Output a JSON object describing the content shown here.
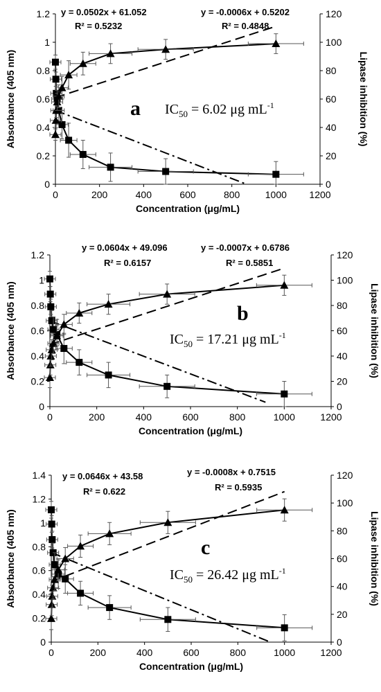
{
  "chart_data": [
    {
      "type": "scatter",
      "panel_letter": "a",
      "ic50_text": "6.02 μg mL",
      "xlabel": "Concentration (μg/mL)",
      "ylabel_left": "Absorbance (405 nm)",
      "ylabel_right": "Lipase inhibition (%)",
      "xlim": [
        0,
        1200
      ],
      "xticks": [
        0,
        200,
        400,
        600,
        800,
        1000,
        1200
      ],
      "ylim_left": [
        0,
        1.2
      ],
      "yticks_left": [
        0,
        0.2,
        0.4,
        0.6,
        0.8,
        1,
        1.2
      ],
      "ylim_right": [
        0,
        120
      ],
      "yticks_right": [
        0,
        20,
        40,
        60,
        80,
        100,
        120
      ],
      "equations": [
        {
          "text": "y = 0.0502x + 61.052",
          "r2": "R² = 0.5232"
        },
        {
          "text": "y = -0.0006x + 0.5202",
          "r2": "R² = 0.4848"
        }
      ],
      "series": [
        {
          "marker": "square",
          "axis": "left",
          "x": [
            0,
            2,
            4,
            8,
            15,
            30,
            60,
            125,
            250,
            500,
            1000
          ],
          "y": [
            0.86,
            0.74,
            0.64,
            0.6,
            0.52,
            0.42,
            0.31,
            0.21,
            0.12,
            0.09,
            0.07
          ],
          "err_y": [
            0.05,
            0.05,
            0.05,
            0.06,
            0.08,
            0.1,
            0.12,
            0.1,
            0.1,
            0.09,
            0.09
          ]
        },
        {
          "marker": "triangle",
          "axis": "right",
          "x": [
            0,
            2,
            4,
            8,
            15,
            30,
            60,
            125,
            250,
            500,
            1000
          ],
          "y": [
            35,
            45,
            52,
            58,
            62,
            68,
            77,
            85,
            92,
            95,
            99
          ],
          "err_y": [
            4,
            5,
            5,
            6,
            8,
            8,
            10,
            8,
            7,
            7,
            7
          ]
        }
      ],
      "trendlines": [
        {
          "axis": "right",
          "style": "dashed",
          "slope": 0.0502,
          "intercept": 61.052,
          "x_end": 1000
        },
        {
          "axis": "left",
          "style": "dashdot",
          "slope": -0.0006,
          "intercept": 0.5202,
          "x_end": 870
        }
      ]
    },
    {
      "type": "scatter",
      "panel_letter": "b",
      "ic50_text": "17.21 μg mL",
      "xlabel": "Concentration (μg/mL)",
      "ylabel_left": "Absorbance (405 nm)",
      "ylabel_right": "Lipase inhibition (%)",
      "xlim": [
        0,
        1200
      ],
      "xticks": [
        0,
        200,
        400,
        600,
        800,
        1000,
        1200
      ],
      "ylim_left": [
        0,
        1.2
      ],
      "yticks_left": [
        0,
        0.2,
        0.4,
        0.6,
        0.8,
        1,
        1.2
      ],
      "ylim_right": [
        0,
        120
      ],
      "yticks_right": [
        0,
        20,
        40,
        60,
        80,
        100,
        120
      ],
      "equations": [
        {
          "text": "y = 0.0604x + 49.096",
          "r2": "R² = 0.6157"
        },
        {
          "text": "y = -0.0007x + 0.6786",
          "r2": "R² = 0.5851"
        }
      ],
      "series": [
        {
          "marker": "square",
          "axis": "left",
          "x": [
            0,
            2,
            4,
            8,
            15,
            30,
            60,
            125,
            250,
            500,
            1000
          ],
          "y": [
            1.01,
            0.89,
            0.79,
            0.68,
            0.61,
            0.57,
            0.46,
            0.35,
            0.25,
            0.16,
            0.1
          ],
          "err_y": [
            0.06,
            0.06,
            0.06,
            0.08,
            0.1,
            0.12,
            0.12,
            0.1,
            0.1,
            0.09,
            0.1
          ]
        },
        {
          "marker": "triangle",
          "axis": "right",
          "x": [
            0,
            2,
            4,
            8,
            15,
            30,
            60,
            125,
            250,
            500,
            1000
          ],
          "y": [
            23,
            33,
            40,
            45,
            50,
            56,
            65,
            74,
            81,
            89,
            96
          ],
          "err_y": [
            8,
            8,
            8,
            8,
            8,
            8,
            8,
            8,
            8,
            8,
            8
          ]
        }
      ],
      "trendlines": [
        {
          "axis": "right",
          "style": "dashed",
          "slope": 0.0604,
          "intercept": 49.096,
          "x_end": 1000
        },
        {
          "axis": "left",
          "style": "dashdot",
          "slope": -0.0007,
          "intercept": 0.6786,
          "x_end": 920
        }
      ]
    },
    {
      "type": "scatter",
      "panel_letter": "c",
      "ic50_text": "26.42 μg mL",
      "xlabel": "Concentration (μg/mL)",
      "ylabel_left": "Absorbance (405 nm)",
      "ylabel_right": "Lipase inhibition (%)",
      "xlim": [
        0,
        1200
      ],
      "xticks": [
        0,
        200,
        400,
        600,
        800,
        1000,
        1200
      ],
      "ylim_left": [
        0,
        1.4
      ],
      "yticks_left": [
        0,
        0.2,
        0.4,
        0.6,
        0.8,
        1,
        1.2,
        1.4
      ],
      "ylim_right": [
        0,
        120
      ],
      "yticks_right": [
        0,
        20,
        40,
        60,
        80,
        100,
        120
      ],
      "equations": [
        {
          "text": "y = 0.0646x + 43.58",
          "r2": "R² = 0.622"
        },
        {
          "text": "y = -0.0008x + 0.7515",
          "r2": "R² = 0.5935"
        }
      ],
      "series": [
        {
          "marker": "square",
          "axis": "left",
          "x": [
            0,
            2,
            4,
            8,
            15,
            30,
            60,
            125,
            250,
            500,
            1000
          ],
          "y": [
            1.11,
            0.99,
            0.86,
            0.75,
            0.65,
            0.57,
            0.53,
            0.41,
            0.29,
            0.19,
            0.12
          ],
          "err_y": [
            0.07,
            0.07,
            0.07,
            0.08,
            0.1,
            0.12,
            0.12,
            0.1,
            0.1,
            0.1,
            0.11
          ]
        },
        {
          "marker": "triangle",
          "axis": "right",
          "x": [
            0,
            2,
            4,
            8,
            15,
            30,
            60,
            125,
            250,
            500,
            1000
          ],
          "y": [
            17,
            27,
            33,
            39,
            45,
            52,
            60,
            69,
            78,
            86,
            95
          ],
          "err_y": [
            8,
            8,
            8,
            8,
            8,
            8,
            8,
            8,
            8,
            8,
            8
          ]
        }
      ],
      "trendlines": [
        {
          "axis": "right",
          "style": "dashed",
          "slope": 0.0646,
          "intercept": 43.58,
          "x_end": 1000
        },
        {
          "axis": "left",
          "style": "dashdot",
          "slope": -0.0008,
          "intercept": 0.7515,
          "x_end": 935
        }
      ]
    }
  ]
}
